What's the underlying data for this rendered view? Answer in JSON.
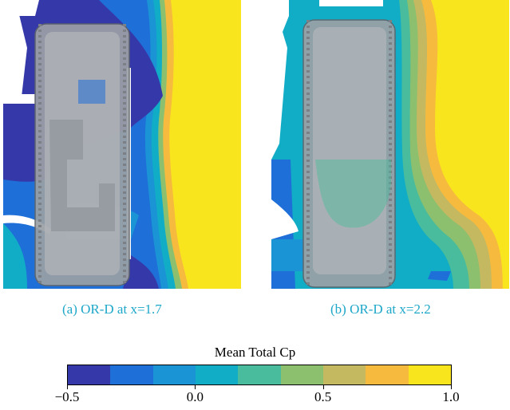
{
  "panels": [
    {
      "id": "a",
      "caption": "(a) OR-D at x=1.7"
    },
    {
      "id": "b",
      "caption": "(b) OR-D at x=2.2"
    }
  ],
  "colorbar": {
    "title": "Mean Total Cp",
    "min": -0.5,
    "max": 1.0,
    "colors": [
      "#3538a8",
      "#1f6fd8",
      "#1a94d4",
      "#11adc6",
      "#48bc9c",
      "#8cc06e",
      "#c4b861",
      "#f6bb3e",
      "#f8e51e"
    ],
    "ticks": [
      {
        "value": -0.5,
        "label": "−0.5"
      },
      {
        "value": 0.0,
        "label": "0.0"
      },
      {
        "value": 0.5,
        "label": "0.5"
      },
      {
        "value": 1.0,
        "label": "1.0"
      }
    ]
  }
}
